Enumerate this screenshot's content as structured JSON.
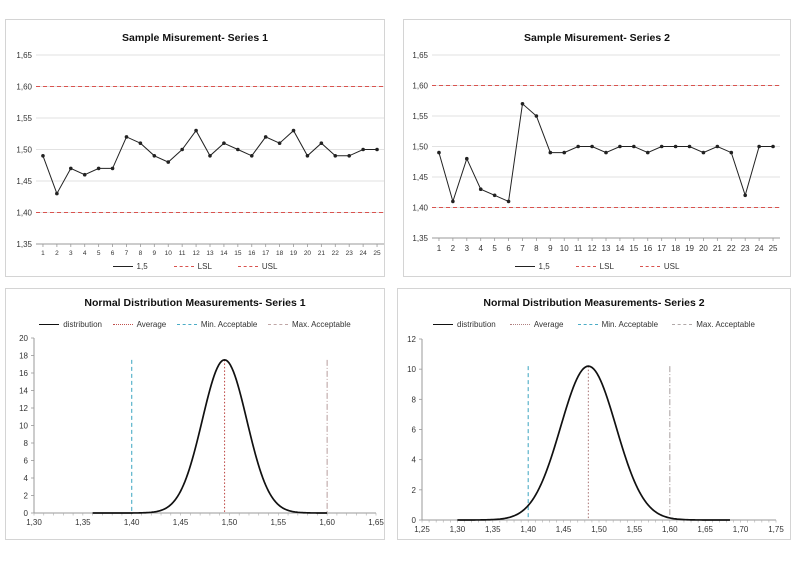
{
  "chart_data": [
    {
      "id": "p1",
      "type": "line",
      "title": "Sample Misurement- Series 1",
      "x": [
        1,
        2,
        3,
        4,
        5,
        6,
        7,
        8,
        9,
        10,
        11,
        12,
        13,
        14,
        15,
        16,
        17,
        18,
        19,
        20,
        21,
        22,
        23,
        24,
        25
      ],
      "xticks": [
        "1",
        "2",
        "3",
        "4",
        "5",
        "6",
        "7",
        "8",
        "9",
        "10",
        "11",
        "12",
        "13",
        "14",
        "15",
        "16",
        "17",
        "18",
        "19",
        "20",
        "21",
        "22",
        "23",
        "24",
        "25"
      ],
      "ylim": [
        1.35,
        1.65
      ],
      "yticks": [
        "1,35",
        "1,40",
        "1,45",
        "1,50",
        "1,55",
        "1,60",
        "1,65"
      ],
      "ytick_values": [
        1.35,
        1.4,
        1.45,
        1.5,
        1.55,
        1.6,
        1.65
      ],
      "grid": true,
      "legend_position": "bottom",
      "series": [
        {
          "name": "1,5",
          "color": "#222222",
          "style": "solid-markers",
          "values": [
            1.49,
            1.43,
            1.47,
            1.46,
            1.47,
            1.47,
            1.52,
            1.51,
            1.49,
            1.48,
            1.5,
            1.53,
            1.49,
            1.51,
            1.5,
            1.49,
            1.52,
            1.51,
            1.53,
            1.49,
            1.51,
            1.49,
            1.49,
            1.5,
            1.5
          ]
        },
        {
          "name": "LSL",
          "color": "#d9534f",
          "style": "dashed",
          "constant": 1.4
        },
        {
          "name": "USL",
          "color": "#d9534f",
          "style": "dashed",
          "constant": 1.6
        }
      ]
    },
    {
      "id": "p2",
      "type": "line",
      "title": "Sample Misurement- Series 2",
      "x": [
        1,
        2,
        3,
        4,
        5,
        6,
        7,
        8,
        9,
        10,
        11,
        12,
        13,
        14,
        15,
        16,
        17,
        18,
        19,
        20,
        21,
        22,
        23,
        24,
        25
      ],
      "xticks": [
        "1",
        "2",
        "3",
        "4",
        "5",
        "6",
        "7",
        "8",
        "9",
        "10",
        "11",
        "12",
        "13",
        "14",
        "15",
        "16",
        "17",
        "18",
        "19",
        "20",
        "21",
        "22",
        "23",
        "24",
        "25"
      ],
      "ylim": [
        1.35,
        1.65
      ],
      "yticks": [
        "1,35",
        "1,40",
        "1,45",
        "1,50",
        "1,55",
        "1,60",
        "1,65"
      ],
      "ytick_values": [
        1.35,
        1.4,
        1.45,
        1.5,
        1.55,
        1.6,
        1.65
      ],
      "grid": true,
      "legend_position": "bottom",
      "series": [
        {
          "name": "1,5",
          "color": "#222222",
          "style": "solid-markers",
          "values": [
            1.49,
            1.41,
            1.48,
            1.43,
            1.42,
            1.41,
            1.57,
            1.55,
            1.49,
            1.49,
            1.5,
            1.5,
            1.49,
            1.5,
            1.5,
            1.49,
            1.5,
            1.5,
            1.5,
            1.49,
            1.5,
            1.49,
            1.42,
            1.5,
            1.5
          ]
        },
        {
          "name": "LSL",
          "color": "#d9534f",
          "style": "dashed",
          "constant": 1.4
        },
        {
          "name": "USL",
          "color": "#d9534f",
          "style": "dashed",
          "constant": 1.6
        }
      ]
    },
    {
      "id": "p3",
      "type": "line",
      "title": "Normal Distribution Measurements- Series 1",
      "xlim": [
        1.3,
        1.65
      ],
      "xticks": [
        "1,30",
        "1,35",
        "1,40",
        "1,45",
        "1,50",
        "1,55",
        "1,60",
        "1,65"
      ],
      "xtick_values": [
        1.3,
        1.35,
        1.4,
        1.45,
        1.5,
        1.55,
        1.6,
        1.65
      ],
      "ylim": [
        0,
        20
      ],
      "yticks": [
        "0",
        "2",
        "4",
        "6",
        "8",
        "10",
        "12",
        "14",
        "16",
        "18",
        "20"
      ],
      "ytick_values": [
        0,
        2,
        4,
        6,
        8,
        10,
        12,
        14,
        16,
        18,
        20
      ],
      "grid": false,
      "legend_position": "top",
      "distribution": {
        "mean": 1.495,
        "peak": 17.5,
        "x_start": 1.36,
        "x_end": 1.6
      },
      "series": [
        {
          "name": "distribution",
          "color": "#111111",
          "style": "solid"
        },
        {
          "name": "Average",
          "color": "#c0504d",
          "style": "dotted",
          "x_value": 1.495,
          "y_top": 17.5
        },
        {
          "name": "Min. Acceptable",
          "color": "#4bacc6",
          "style": "dashed",
          "x_value": 1.4,
          "y_top": 17.5
        },
        {
          "name": "Max. Acceptable",
          "color": "#bfa6a6",
          "style": "dashdot",
          "x_value": 1.6,
          "y_top": 17.5
        }
      ]
    },
    {
      "id": "p4",
      "type": "line",
      "title": "Normal Distribution Measurements- Series 2",
      "xlim": [
        1.25,
        1.75
      ],
      "xticks": [
        "1,25",
        "1,30",
        "1,35",
        "1,40",
        "1,45",
        "1,50",
        "1,55",
        "1,60",
        "1,65",
        "1,70",
        "1,75"
      ],
      "xtick_values": [
        1.25,
        1.3,
        1.35,
        1.4,
        1.45,
        1.5,
        1.55,
        1.6,
        1.65,
        1.7,
        1.75
      ],
      "ylim": [
        0,
        12
      ],
      "yticks": [
        "0",
        "2",
        "4",
        "6",
        "8",
        "10",
        "12"
      ],
      "ytick_values": [
        0,
        2,
        4,
        6,
        8,
        10,
        12
      ],
      "grid": false,
      "legend_position": "top",
      "distribution": {
        "mean": 1.485,
        "peak": 10.2,
        "x_start": 1.3,
        "x_end": 1.685
      },
      "series": [
        {
          "name": "distribution",
          "color": "#111111",
          "style": "solid"
        },
        {
          "name": "Average",
          "color": "#b08080",
          "style": "dotted",
          "x_value": 1.485,
          "y_top": 10.2
        },
        {
          "name": "Min. Acceptable",
          "color": "#4bacc6",
          "style": "dashed",
          "x_value": 1.4,
          "y_top": 10.2
        },
        {
          "name": "Max. Acceptable",
          "color": "#b0a8a8",
          "style": "dashdot",
          "x_value": 1.6,
          "y_top": 10.2
        }
      ]
    }
  ]
}
